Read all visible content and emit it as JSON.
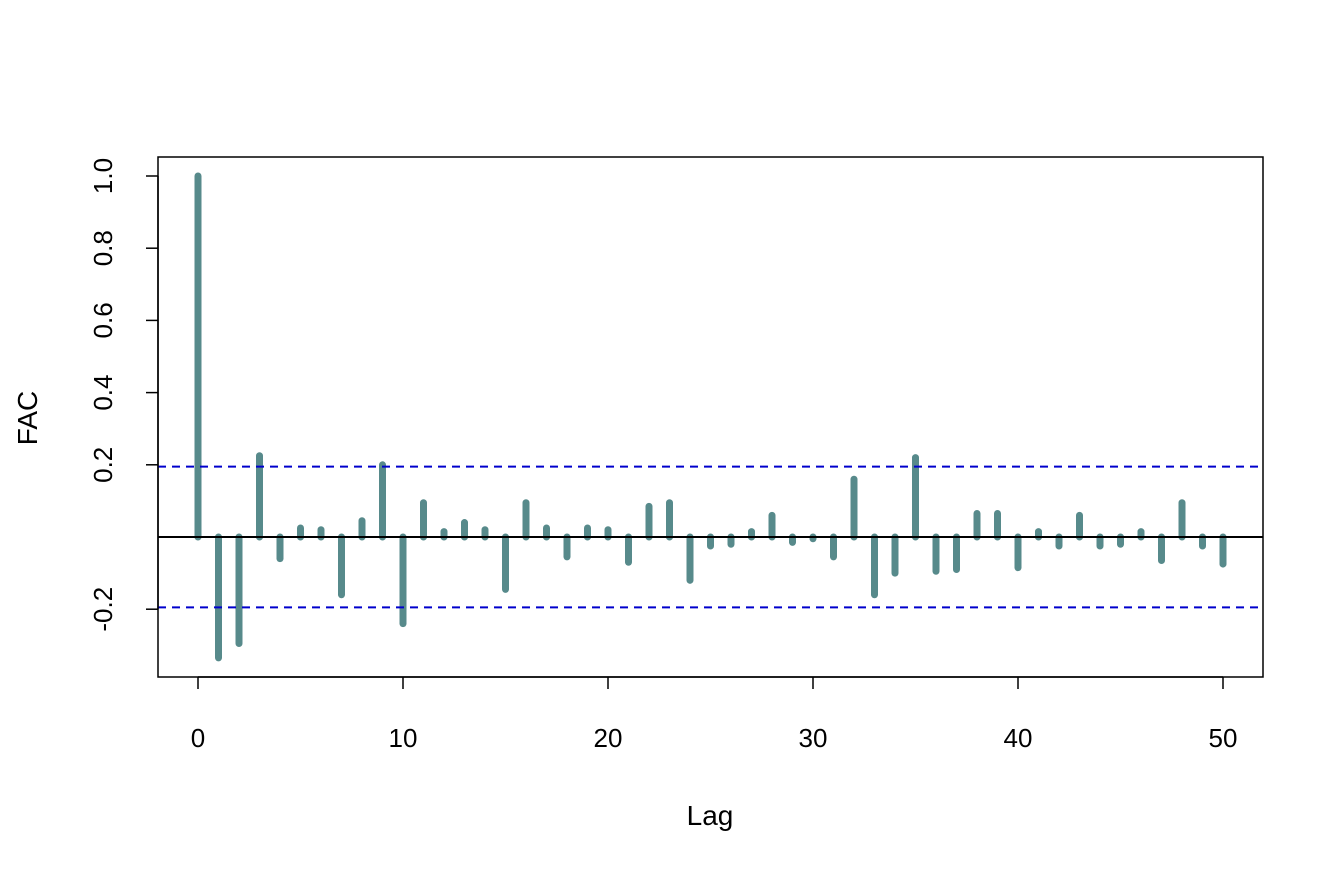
{
  "chart_data": {
    "type": "bar",
    "title": "",
    "xlabel": "Lag",
    "ylabel": "FAC",
    "xlim": [
      -2,
      52
    ],
    "ylim": [
      -0.38,
      1.06
    ],
    "x_ticks": [
      0,
      10,
      20,
      30,
      40,
      50
    ],
    "x_tick_labels": [
      "0",
      "10",
      "20",
      "30",
      "40",
      "50"
    ],
    "y_ticks": [
      -0.2,
      0.2,
      0.4,
      0.6,
      0.8,
      1.0
    ],
    "y_tick_labels": [
      "-0.2",
      "0.2",
      "0.4",
      "0.6",
      "0.8",
      "1.0"
    ],
    "confidence_bounds": [
      0.195,
      -0.195
    ],
    "lags": [
      0,
      1,
      2,
      3,
      4,
      5,
      6,
      7,
      8,
      9,
      10,
      11,
      12,
      13,
      14,
      15,
      16,
      17,
      18,
      19,
      20,
      21,
      22,
      23,
      24,
      25,
      26,
      27,
      28,
      29,
      30,
      31,
      32,
      33,
      34,
      35,
      36,
      37,
      38,
      39,
      40,
      41,
      42,
      43,
      44,
      45,
      46,
      47,
      48,
      49,
      50
    ],
    "values": [
      1.0,
      -0.335,
      -0.295,
      0.225,
      -0.06,
      0.025,
      0.02,
      -0.16,
      0.045,
      0.2,
      -0.24,
      0.095,
      0.015,
      0.04,
      0.02,
      -0.145,
      0.095,
      0.025,
      -0.055,
      0.025,
      0.02,
      -0.07,
      0.085,
      0.095,
      -0.12,
      -0.025,
      -0.02,
      0.015,
      0.06,
      -0.015,
      -0.005,
      -0.055,
      0.16,
      -0.16,
      -0.1,
      0.22,
      -0.095,
      -0.09,
      0.065,
      0.065,
      -0.085,
      0.015,
      -0.025,
      0.06,
      -0.025,
      -0.02,
      0.015,
      -0.065,
      0.095,
      -0.025,
      -0.075
    ],
    "grid": false,
    "legend": "none",
    "colors": {
      "bars": "#578a8b",
      "bounds": "#0000cc",
      "zero_line": "#000000",
      "frame": "#000000"
    }
  }
}
